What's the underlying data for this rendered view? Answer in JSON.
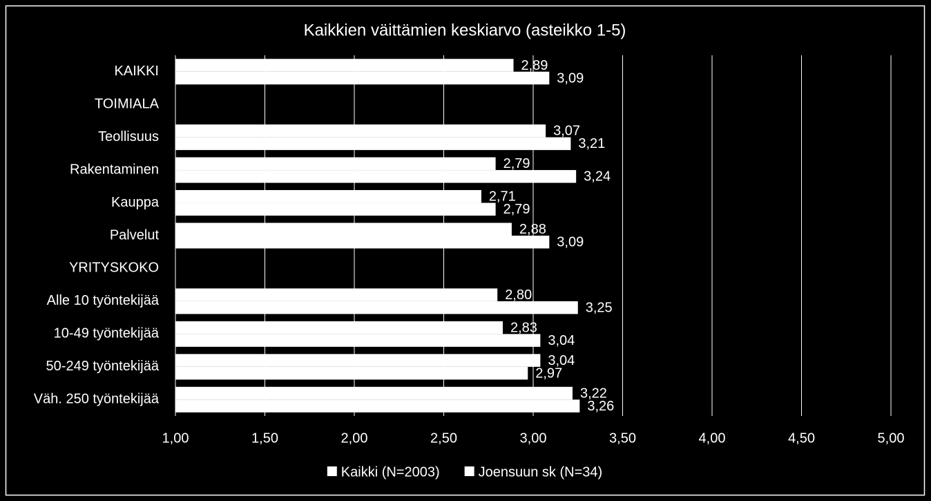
{
  "chart_data": {
    "type": "bar",
    "orientation": "horizontal",
    "title": "Kaikkien väittämien keskiarvo (asteikko 1-5)",
    "categories": [
      "KAIKKI",
      "TOIMIALA",
      "Teollisuus",
      "Rakentaminen",
      "Kauppa",
      "Palvelut",
      "YRITYSKOKO",
      "Alle 10 työntekijää",
      "10-49 työntekijää",
      "50-249 työntekijää",
      "Väh. 250 työntekijää"
    ],
    "series": [
      {
        "name": "Kaikki (N=2003)",
        "color": "#ffffff",
        "values": [
          2.89,
          null,
          3.07,
          2.79,
          2.71,
          2.88,
          null,
          2.8,
          2.83,
          3.04,
          3.22
        ],
        "value_labels": [
          "2,89",
          null,
          "3,07",
          "2,79",
          "2,71",
          "2,88",
          null,
          "2,80",
          "2,83",
          "3,04",
          "3,22"
        ]
      },
      {
        "name": "Joensuun sk (N=34)",
        "color": "#ffffff",
        "values": [
          3.09,
          null,
          3.21,
          3.24,
          2.79,
          3.09,
          null,
          3.25,
          3.04,
          2.97,
          3.26
        ],
        "value_labels": [
          "3,09",
          null,
          "3,21",
          "3,24",
          "2,79",
          "3,09",
          null,
          "3,25",
          "3,04",
          "2,97",
          "3,26"
        ]
      }
    ],
    "xlim": [
      1,
      5
    ],
    "xticks": [
      {
        "value": 1,
        "label": "1,00"
      },
      {
        "value": 1.5,
        "label": "1,50"
      },
      {
        "value": 2,
        "label": "2,00"
      },
      {
        "value": 2.5,
        "label": "2,50"
      },
      {
        "value": 3,
        "label": "3,00"
      },
      {
        "value": 3.5,
        "label": "3,50"
      },
      {
        "value": 4,
        "label": "4,00"
      },
      {
        "value": 4.5,
        "label": "4,50"
      },
      {
        "value": 5,
        "label": "5,00"
      }
    ],
    "grid": true,
    "legend": "bottom"
  }
}
